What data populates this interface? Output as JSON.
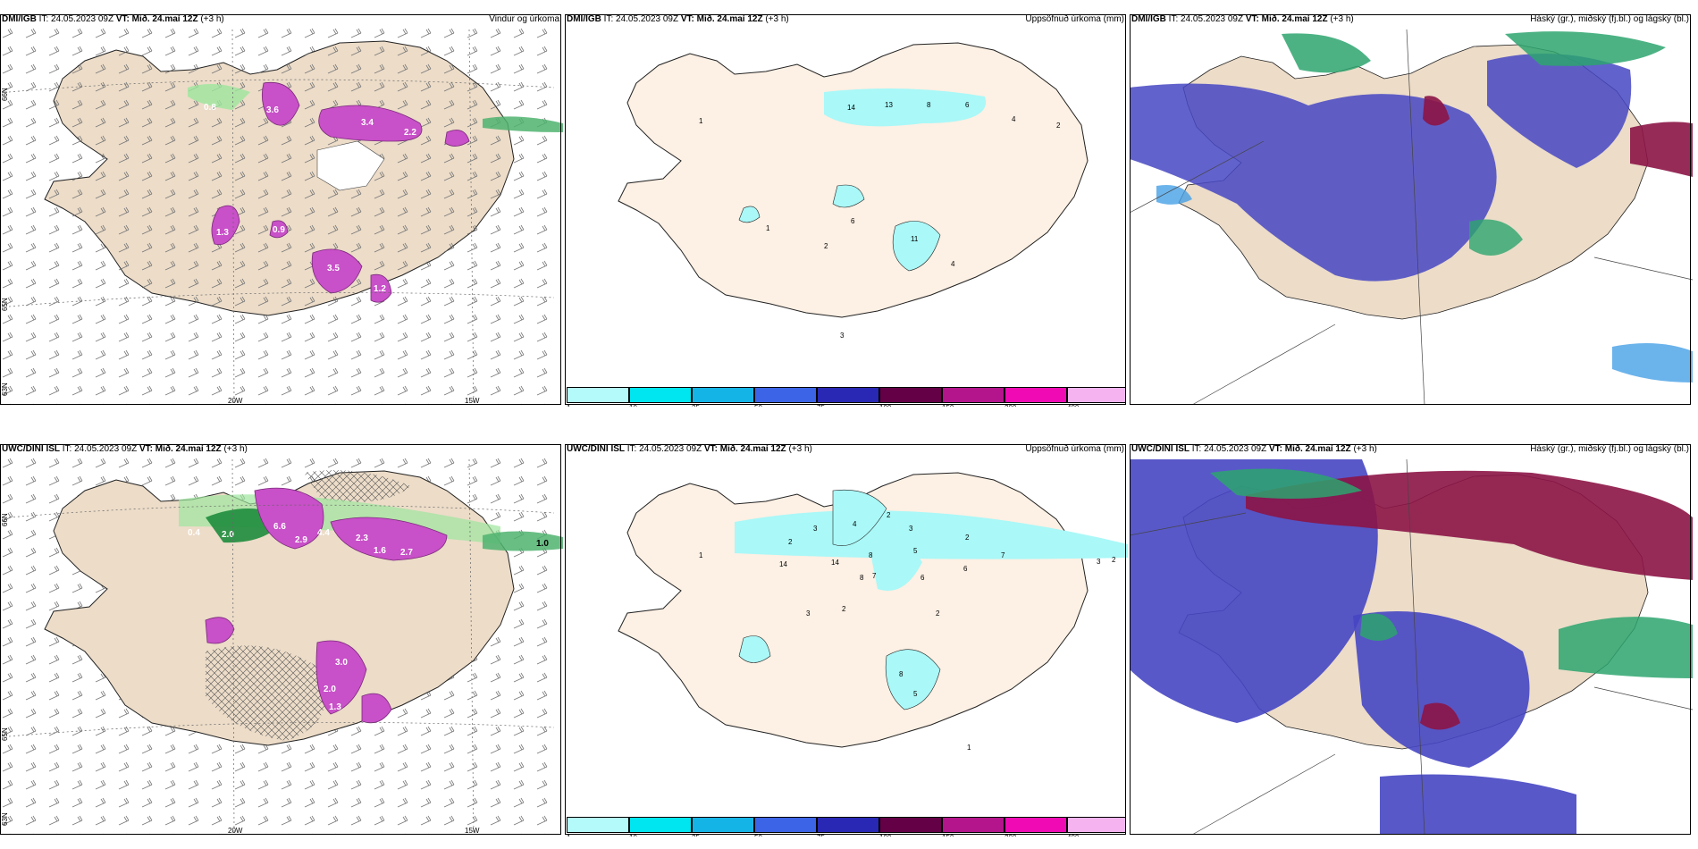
{
  "rows": [
    {
      "model": "DMI/IGB",
      "it_label": "IT:",
      "it_value": "24.05.2023 09Z",
      "vt_label": "VT:",
      "vt_value": "Mið. 24.maí 12Z",
      "lead": "(+3 h)",
      "wind": {
        "title": "Vindur og úrkoma",
        "precip_labels": [
          "0.8",
          "3.6",
          "3.4",
          "2.2",
          "1.3",
          "0.9",
          "3.5",
          "1.2"
        ],
        "grid": {
          "bottom": [
            "20W",
            "15W"
          ],
          "left": [
            "66N",
            "65N",
            "63N"
          ]
        }
      },
      "accum": {
        "title": "Uppsöfnuð úrkoma (mm)",
        "values": [
          "14",
          "13",
          "8",
          "6",
          "4",
          "2",
          "1",
          "6",
          "11",
          "2",
          "3",
          "4",
          "1"
        ]
      },
      "cloud": {
        "title": "Háský (gr.), miðský (fj.bl.) og lágský (bl.)"
      }
    },
    {
      "model": "UWC/DINI ISL",
      "it_label": "IT:",
      "it_value": "24.05.2023 09Z",
      "vt_label": "VT:",
      "vt_value": "Mið. 24.maí 12Z",
      "lead": "(+3 h)",
      "wind": {
        "title": "",
        "precip_labels": [
          "0.4",
          "2.0",
          "6.6",
          "2.9",
          "4.4",
          "2.3",
          "1.6",
          "2.7",
          "3.0",
          "2.0",
          "1.3",
          "1.0"
        ],
        "grid": {
          "bottom": [
            "20W",
            "15W"
          ],
          "left": [
            "66N",
            "65N",
            "63N"
          ]
        }
      },
      "accum": {
        "title": "Uppsöfnuð úrkoma (mm)",
        "values": [
          "2",
          "3",
          "4",
          "14",
          "14",
          "8",
          "8",
          "7",
          "2",
          "3",
          "6",
          "6",
          "5",
          "7",
          "2",
          "3",
          "2",
          "1",
          "3",
          "2",
          "2",
          "8",
          "5",
          "1"
        ]
      },
      "cloud": {
        "title": "Háský (gr.), miðský (fj.bl.) og lágský (bl.)"
      }
    }
  ],
  "colorbar": {
    "ticks": [
      "1",
      "10",
      "25",
      "50",
      "75",
      "100",
      "150",
      "200",
      "400"
    ],
    "colors": [
      "#b4fafa",
      "#00e6f0",
      "#14b4e6",
      "#3c64e6",
      "#2828b4",
      "#640046",
      "#b4148c",
      "#f00ab4",
      "#f5b4f0"
    ]
  },
  "legend_colors": {
    "land": "#ecdcc8",
    "wind_precip": "#c850c8",
    "accum_land": "#fdf0e4",
    "accum_precip": "#aaf8f8",
    "high_cloud": "#2da56e",
    "mid_cloud": "#8c1446",
    "low_cloud": "#4646c3"
  }
}
